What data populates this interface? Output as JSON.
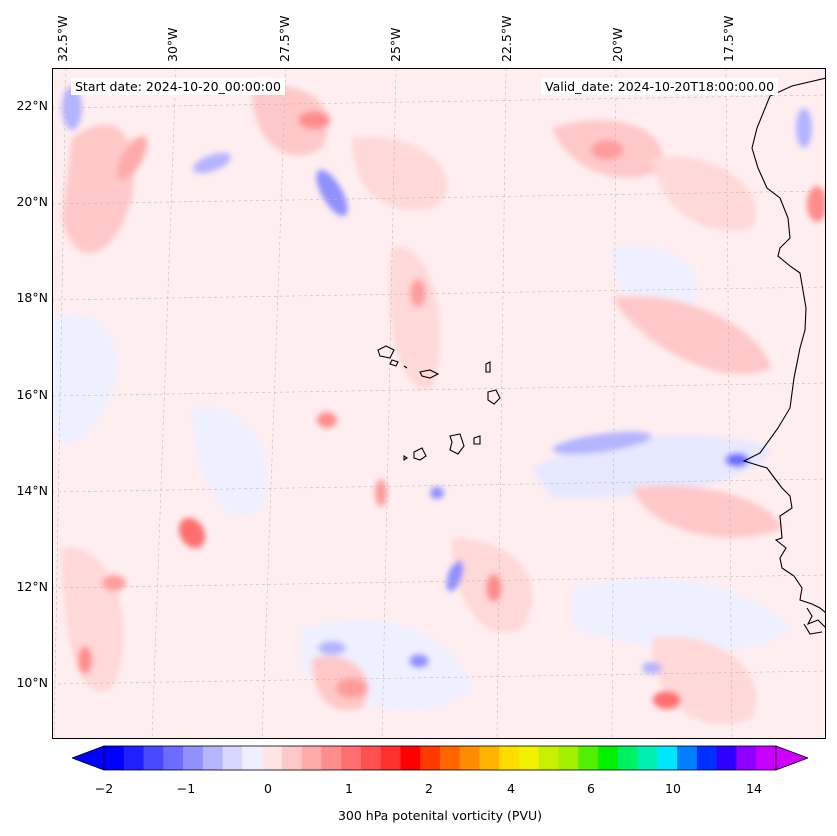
{
  "map": {
    "start_date": "Start date: 2024-10-20_00:00:00",
    "valid_date": "Valid_date: 2024-10-20T18:00:00.00",
    "lon_labels": [
      "32.5°W",
      "30°W",
      "27.5°W",
      "25°W",
      "22.5°W",
      "20°W",
      "17.5°W"
    ],
    "lat_labels": [
      "22°N",
      "20°N",
      "18°N",
      "16°N",
      "14°N",
      "12°N",
      "10°N"
    ],
    "background_color": "#eef0ff",
    "coastline_color": "#000000"
  },
  "colorbar": {
    "label": "300 hPa potenital vorticity (PVU)",
    "ticks": [
      "−2",
      "−1",
      "0",
      "1",
      "2",
      "4",
      "6",
      "10",
      "14"
    ],
    "colors": [
      "#0000ff",
      "#2020ff",
      "#4848ff",
      "#6c6cff",
      "#9090ff",
      "#b4b4ff",
      "#d8d8ff",
      "#eef0ff",
      "#ffe4e4",
      "#ffc8c8",
      "#ffaaaa",
      "#ff8c8c",
      "#ff6e6e",
      "#ff5050",
      "#ff3030",
      "#ff0000",
      "#ff3a00",
      "#ff6400",
      "#ff8c00",
      "#ffb400",
      "#ffdc00",
      "#f0f000",
      "#c8f000",
      "#a0f000",
      "#50f000",
      "#00f000",
      "#00f064",
      "#00f0b4",
      "#00e6ff",
      "#0080ff",
      "#0030ff",
      "#3000ff",
      "#9000ff",
      "#c800ff"
    ],
    "under_color": "#0000ff",
    "over_color": "#d000ff"
  }
}
